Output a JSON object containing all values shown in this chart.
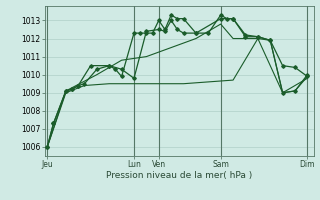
{
  "background_color": "#d0eae4",
  "grid_color": "#b0cfc8",
  "line_color": "#1a5c2a",
  "title": "Pression niveau de la mer( hPa )",
  "ylim": [
    1005.5,
    1013.8
  ],
  "yticks": [
    1006,
    1007,
    1008,
    1009,
    1010,
    1011,
    1012,
    1013
  ],
  "day_labels": [
    "Jeu",
    "Lun",
    "Ven",
    "Sam",
    "Dim"
  ],
  "day_positions": [
    0,
    7,
    9,
    14,
    21
  ],
  "series1_x": [
    0,
    0.5,
    1.5,
    2,
    2.5,
    3,
    4,
    5,
    5.5,
    6,
    7,
    7.5,
    8,
    8.5,
    9,
    9.5,
    10,
    10.5,
    11,
    12,
    13,
    14,
    14.5,
    15,
    16,
    17,
    18,
    19,
    20,
    21
  ],
  "series1_y": [
    1006.0,
    1007.3,
    1009.1,
    1009.2,
    1009.4,
    1009.5,
    1010.3,
    1010.5,
    1010.3,
    1009.9,
    1012.3,
    1012.3,
    1012.3,
    1012.3,
    1013.0,
    1012.5,
    1013.3,
    1013.1,
    1013.1,
    1012.3,
    1012.3,
    1013.3,
    1013.1,
    1013.1,
    1012.1,
    1012.1,
    1011.9,
    1010.5,
    1010.4,
    1009.9
  ],
  "series2_x": [
    0,
    0.5,
    1.5,
    2,
    2.5,
    3.5,
    5,
    6,
    7,
    8,
    9,
    9.5,
    10,
    10.5,
    11,
    12,
    14,
    15,
    16,
    17,
    18,
    19,
    20,
    21
  ],
  "series2_y": [
    1006.0,
    1007.3,
    1009.1,
    1009.2,
    1009.4,
    1010.5,
    1010.5,
    1010.3,
    1009.8,
    1012.4,
    1012.5,
    1012.4,
    1013.0,
    1012.5,
    1012.3,
    1012.3,
    1013.1,
    1013.1,
    1012.2,
    1012.1,
    1011.9,
    1009.0,
    1009.1,
    1010.0
  ],
  "series3_x": [
    0,
    1.5,
    3,
    5,
    7,
    9,
    11,
    13,
    15,
    17,
    19,
    21
  ],
  "series3_y": [
    1006.0,
    1009.0,
    1009.4,
    1009.5,
    1009.5,
    1009.5,
    1009.5,
    1009.6,
    1009.7,
    1012.0,
    1009.0,
    1009.8
  ],
  "series4_x": [
    0,
    1.5,
    4,
    6,
    8,
    10,
    12,
    14,
    15,
    17,
    18,
    19,
    20,
    21
  ],
  "series4_y": [
    1006.0,
    1009.1,
    1010.0,
    1010.8,
    1011.0,
    1011.5,
    1012.0,
    1012.8,
    1012.0,
    1012.0,
    1011.9,
    1009.0,
    1009.1,
    1009.9
  ]
}
